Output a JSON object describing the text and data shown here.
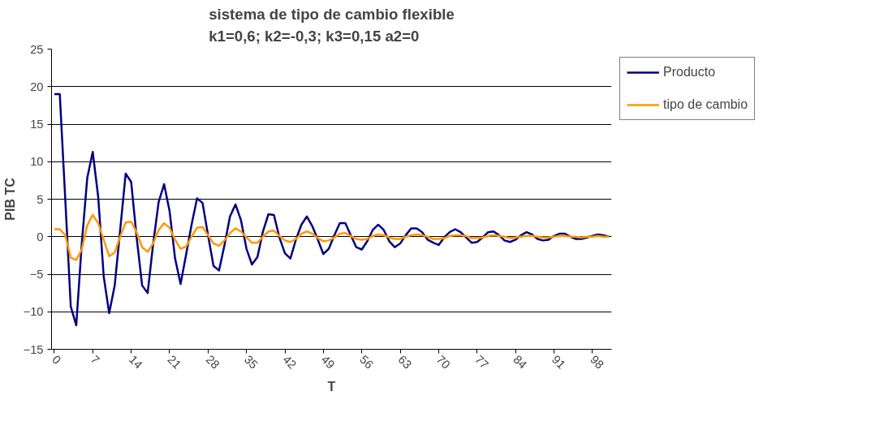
{
  "chart_data": {
    "type": "line",
    "title": "sistema de tipo de cambio flexible\nk1=0,6; k2=-0,3; k3=0,15 a2=0",
    "xlabel": "T",
    "ylabel": "PIB TC",
    "x": [
      0,
      1,
      2,
      3,
      4,
      5,
      6,
      7,
      8,
      9,
      10,
      11,
      12,
      13,
      14,
      15,
      16,
      17,
      18,
      19,
      20,
      21,
      22,
      23,
      24,
      25,
      26,
      27,
      28,
      29,
      30,
      31,
      32,
      33,
      34,
      35,
      36,
      37,
      38,
      39,
      40,
      41,
      42,
      43,
      44,
      45,
      46,
      47,
      48,
      49,
      50,
      51,
      52,
      53,
      54,
      55,
      56,
      57,
      58,
      59,
      60,
      61,
      62,
      63,
      64,
      65,
      66,
      67,
      68,
      69,
      70,
      71,
      72,
      73,
      74,
      75,
      76,
      77,
      78,
      79,
      80,
      81,
      82,
      83,
      84,
      85,
      86,
      87,
      88,
      89,
      90,
      91,
      92,
      93,
      94,
      95,
      96,
      97,
      98,
      99,
      100,
      101
    ],
    "series": [
      {
        "name": "Producto",
        "color": "#000080",
        "values": [
          19,
          19,
          5,
          -9.3,
          -11.8,
          -1,
          7.8,
          11.3,
          5.3,
          -5.3,
          -10.2,
          -6.5,
          0.9,
          8.4,
          7.3,
          -0.1,
          -6.5,
          -7.5,
          -1,
          4.6,
          7,
          3.4,
          -2.9,
          -6.3,
          -2.4,
          1.6,
          5.1,
          4.5,
          0.2,
          -3.9,
          -4.5,
          -1.1,
          2.7,
          4.3,
          2.2,
          -1.6,
          -3.7,
          -2.7,
          0.7,
          3,
          2.9,
          -0.1,
          -2.2,
          -2.9,
          -0.4,
          1.6,
          2.7,
          1.4,
          -0.4,
          -2.3,
          -1.6,
          0.2,
          1.8,
          1.8,
          0.2,
          -1.4,
          -1.7,
          -0.6,
          0.9,
          1.6,
          0.9,
          -0.6,
          -1.4,
          -0.9,
          0.2,
          1.1,
          1.1,
          0.6,
          -0.4,
          -0.8,
          -1.1,
          -0.1,
          0.6,
          1,
          0.6,
          -0.1,
          -0.8,
          -0.7,
          -0.1,
          0.6,
          0.7,
          0.2,
          -0.5,
          -0.7,
          -0.4,
          0.2,
          0.6,
          0.3,
          -0.3,
          -0.5,
          -0.4,
          0.1,
          0.4,
          0.4,
          0,
          -0.3,
          -0.3,
          -0.1,
          0.1,
          0.3,
          0.2,
          0
        ]
      },
      {
        "name": "tipo de cambio",
        "color": "#ff9900",
        "values": [
          1,
          1,
          0.2,
          -2.8,
          -3.1,
          -1.7,
          1.5,
          2.9,
          1.8,
          -0.4,
          -2.6,
          -2.1,
          0,
          1.9,
          2,
          0.6,
          -1.4,
          -2,
          -0.9,
          0.9,
          1.8,
          1.2,
          -0.4,
          -1.6,
          -1.3,
          0,
          1.2,
          1.3,
          0.2,
          -0.9,
          -1.2,
          -0.5,
          0.5,
          1.1,
          0.7,
          -0.1,
          -0.8,
          -0.8,
          0,
          0.7,
          0.8,
          0.1,
          -0.5,
          -0.7,
          -0.3,
          0.4,
          0.7,
          0.4,
          -0.2,
          -0.6,
          -0.5,
          -0.1,
          0.4,
          0.5,
          0.1,
          -0.3,
          -0.4,
          -0.3,
          0.1,
          0.3,
          0.2,
          -0.1,
          -0.3,
          -0.3,
          0,
          0.2,
          0.3,
          0.2,
          0,
          -0.3,
          -0.3,
          -0.2,
          0.1,
          0.2,
          0.2,
          0.1,
          -0.2,
          -0.2,
          -0.1,
          0.1,
          0.2,
          0.1,
          0,
          -0.2,
          -0.1,
          0,
          0.1,
          0.1,
          0,
          -0.1,
          -0.1,
          0,
          0.1,
          0.1,
          0,
          0,
          -0.1,
          0,
          0,
          0.1,
          0,
          0
        ]
      }
    ],
    "xlim": [
      -0.5,
      101.5
    ],
    "xticks": [
      0,
      7,
      14,
      21,
      28,
      35,
      42,
      49,
      56,
      63,
      70,
      77,
      84,
      91,
      98
    ],
    "ylim": [
      -15,
      25
    ],
    "yticks": [
      -15,
      -10,
      -5,
      0,
      5,
      10,
      15,
      20,
      25
    ],
    "grid": "y",
    "legend": "right",
    "marker": "none",
    "line_style": "solid"
  }
}
